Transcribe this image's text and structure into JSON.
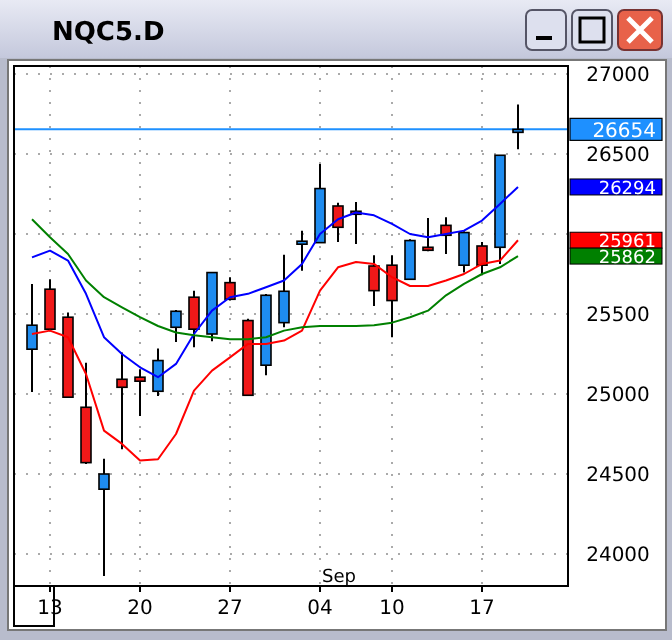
{
  "chart_data": {
    "type": "candlestick",
    "title": "NQC5.D",
    "categories": [
      null,
      "13",
      null,
      null,
      null,
      null,
      "20",
      null,
      null,
      null,
      null,
      "27",
      null,
      null,
      null,
      null,
      "04",
      null,
      null,
      null,
      "10",
      null,
      null,
      null,
      null,
      "17",
      null,
      null
    ],
    "ohlc": [
      [
        25280,
        25688,
        25013,
        25430
      ],
      [
        25655,
        25717,
        25396,
        25405
      ],
      [
        25480,
        25509,
        24980,
        24980
      ],
      [
        24917,
        25196,
        24563,
        24571
      ],
      [
        24405,
        24596,
        23863,
        24500
      ],
      [
        25092,
        25259,
        24655,
        25042
      ],
      [
        25105,
        25155,
        24863,
        25080
      ],
      [
        25017,
        25284,
        24988,
        25209
      ],
      [
        25417,
        25525,
        25325,
        25517
      ],
      [
        25605,
        25646,
        25292,
        25405
      ],
      [
        25375,
        25759,
        25330,
        25759
      ],
      [
        25696,
        25730,
        25584,
        25592
      ],
      [
        25459,
        25471,
        24992,
        24992
      ],
      [
        25180,
        25625,
        25117,
        25617
      ],
      [
        25446,
        25871,
        25417,
        25642
      ],
      [
        25946,
        26021,
        25771,
        25955
      ],
      [
        25946,
        26438,
        25946,
        26284
      ],
      [
        26175,
        26196,
        25950,
        26042
      ],
      [
        26142,
        26200,
        25938,
        26125
      ],
      [
        25800,
        25867,
        25550,
        25646
      ],
      [
        25805,
        25867,
        25355,
        25584
      ],
      [
        25717,
        25967,
        25717,
        25959
      ],
      [
        25917,
        26100,
        25892,
        25900
      ],
      [
        26054,
        26104,
        25875,
        25992
      ],
      [
        25805,
        26017,
        25759,
        26009
      ],
      [
        25925,
        25950,
        25742,
        25805
      ],
      [
        25917,
        26492,
        25813,
        26492
      ],
      [
        26640,
        26809,
        26529,
        26654
      ]
    ],
    "colors": [
      "#1e8cf0",
      "#f01818",
      "#f01818",
      "#f01818",
      "#1e8cf0",
      "#f01818",
      "#f01818",
      "#1e8cf0",
      "#1e8cf0",
      "#f01818",
      "#1e8cf0",
      "#f01818",
      "#f01818",
      "#1e8cf0",
      "#1e8cf0",
      "#1e8cf0",
      "#1e8cf0",
      "#f01818",
      "#f01818",
      "#f01818",
      "#f01818",
      "#1e8cf0",
      "#f01818",
      "#f01818",
      "#1e8cf0",
      "#f01818",
      "#1e8cf0",
      "#1e8cf0"
    ],
    "series": [
      {
        "type": "line",
        "color": "#0000ff",
        "values": [
          25854,
          25896,
          25834,
          25626,
          25355,
          25250,
          25167,
          25105,
          25188,
          25375,
          25521,
          25605,
          25626,
          25667,
          25709,
          25813,
          26000,
          26092,
          26134,
          26117,
          26063,
          26000,
          25980,
          26000,
          26021,
          26084,
          26188,
          26294
        ]
      },
      {
        "type": "line",
        "color": "#ff0000",
        "values": [
          25375,
          25396,
          25355,
          25125,
          24771,
          24688,
          24584,
          24592,
          24750,
          25021,
          25146,
          25229,
          25313,
          25313,
          25334,
          25396,
          25646,
          25792,
          25825,
          25813,
          25730,
          25675,
          25675,
          25709,
          25750,
          25813,
          25834,
          25961
        ]
      },
      {
        "type": "line",
        "color": "#008000",
        "values": [
          26092,
          25980,
          25875,
          25709,
          25605,
          25542,
          25480,
          25425,
          25384,
          25367,
          25355,
          25342,
          25342,
          25355,
          25396,
          25417,
          25425,
          25425,
          25425,
          25430,
          25446,
          25480,
          25521,
          25617,
          25688,
          25750,
          25792,
          25862
        ]
      }
    ],
    "ylim": [
      23800,
      27050
    ],
    "yticks": [
      24000,
      24500,
      25000,
      25500,
      {
        "value": 26000,
        "label": null
      },
      26500,
      27000
    ],
    "ref_lines": [
      {
        "axis": "y",
        "value": 26654,
        "label": "26654",
        "color": "#1e90ff"
      }
    ],
    "annotations": [
      "26294",
      "25961",
      "25862",
      "Sep"
    ],
    "grid": true,
    "marker": "none",
    "line_style": "solid"
  }
}
